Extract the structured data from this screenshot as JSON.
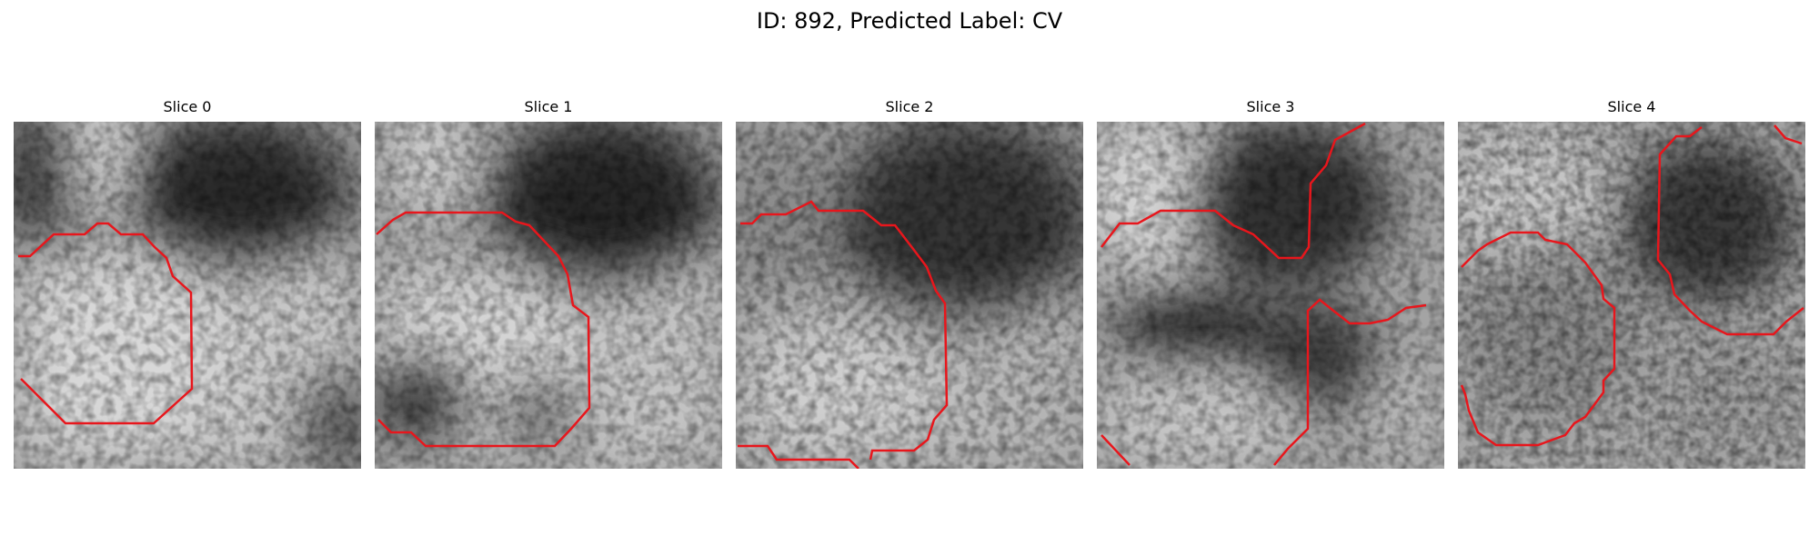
{
  "figure": {
    "title": "ID: 892, Predicted Label: CV"
  },
  "slices": [
    {
      "title": "Slice 0"
    },
    {
      "title": "Slice 1"
    },
    {
      "title": "Slice 2"
    },
    {
      "title": "Slice 3"
    },
    {
      "title": "Slice 4"
    }
  ],
  "colors": {
    "contour": "#e8161c",
    "background": "#ffffff"
  }
}
